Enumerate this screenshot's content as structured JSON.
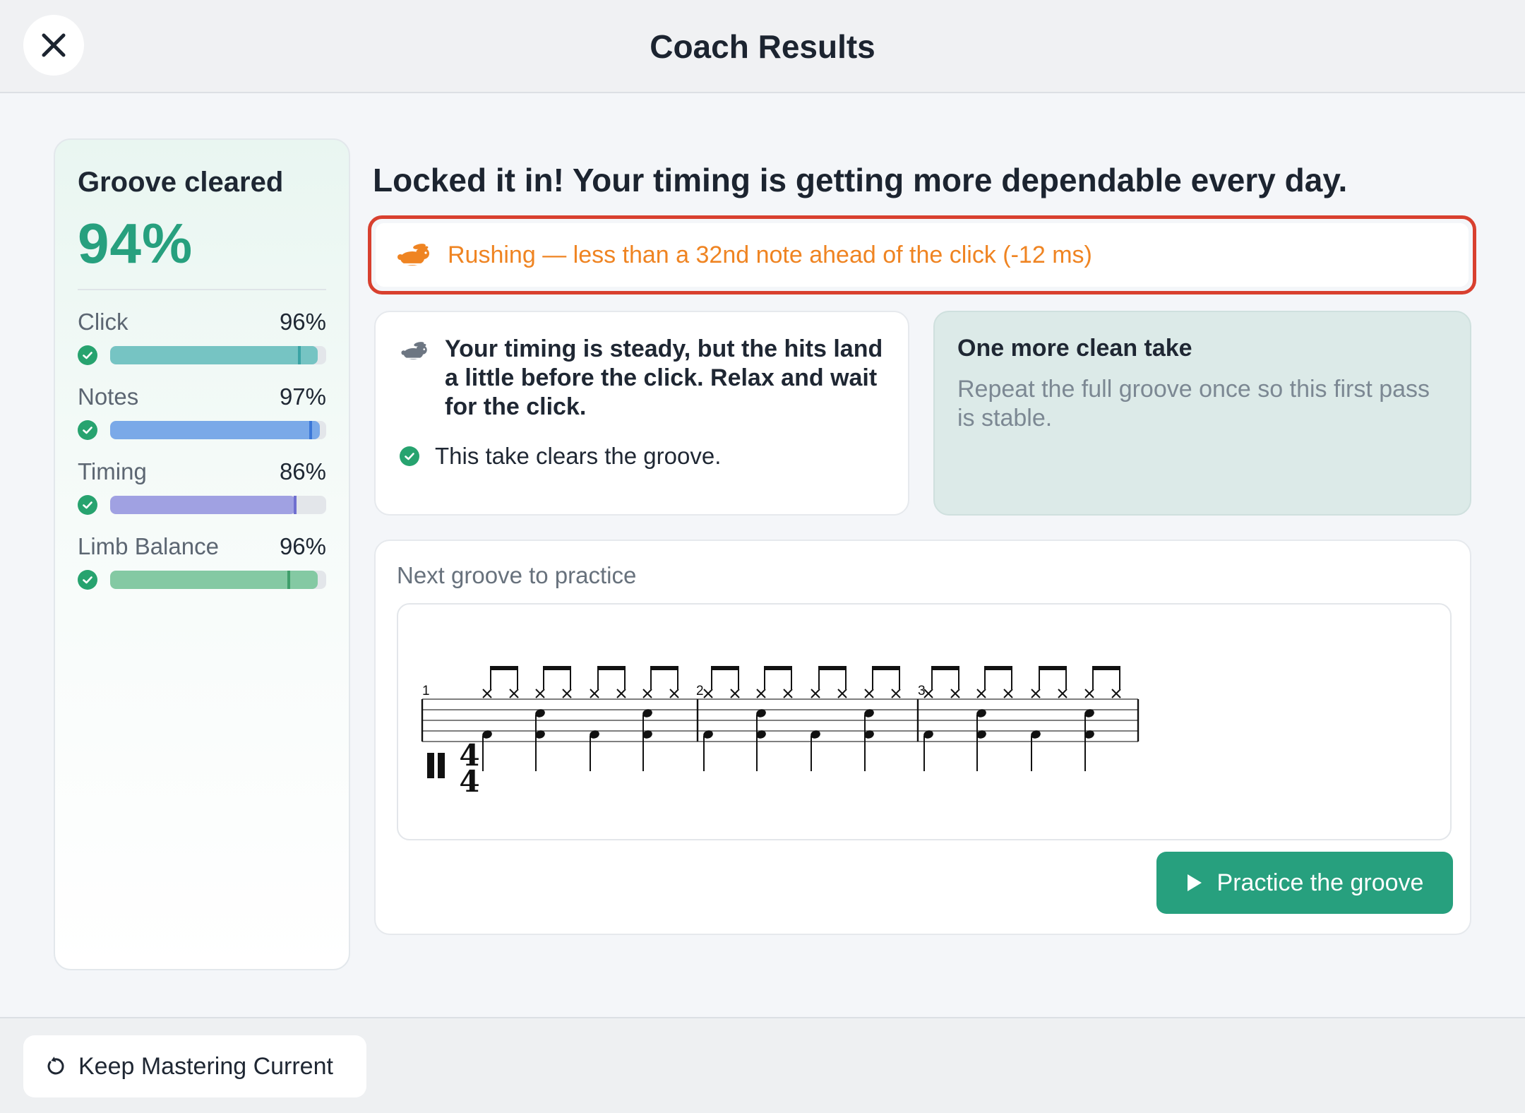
{
  "header": {
    "title": "Coach Results",
    "close_icon": "close-icon"
  },
  "score": {
    "label": "Groove cleared",
    "value": "94%",
    "metrics": [
      {
        "name": "Click",
        "value": "96%",
        "fill": 0.96,
        "marker": 0.87,
        "color": "#76c4c3",
        "marker_color": "#3aa4a5"
      },
      {
        "name": "Notes",
        "value": "97%",
        "fill": 0.97,
        "marker": 0.92,
        "color": "#7aa9e8",
        "marker_color": "#3b78d8"
      },
      {
        "name": "Timing",
        "value": "86%",
        "fill": 0.86,
        "marker": 0.85,
        "color": "#a0a1e2",
        "marker_color": "#6f6fcf"
      },
      {
        "name": "Limb Balance",
        "value": "96%",
        "fill": 0.96,
        "marker": 0.82,
        "color": "#84c9a3",
        "marker_color": "#3f9e6b"
      }
    ]
  },
  "main": {
    "headline": "Locked it in! Your timing is getting more dependable every day.",
    "alert": {
      "icon": "rabbit-icon",
      "text": "Rushing — less than a 32nd note ahead of the click (-12 ms)",
      "color": "#ef8422"
    },
    "feedback": {
      "icon": "rabbit-icon",
      "text": "Your timing is steady, but the hits land a little before the click. Relax and wait for the click.",
      "ok_text": "This take clears the groove."
    },
    "tip": {
      "title": "One more clean take",
      "body": "Repeat the full groove once so this first pass is stable."
    },
    "groove": {
      "label": "Next groove to practice",
      "measure_numbers": [
        "1",
        "2",
        "3"
      ],
      "time_signature": [
        "4",
        "4"
      ],
      "button_label": "Practice the groove",
      "button_icon": "play-icon"
    }
  },
  "footer": {
    "keep_label": "Keep Mastering Current",
    "keep_icon": "restart-icon"
  },
  "colors": {
    "accent": "#27a07e",
    "alert_border": "#d8402f",
    "warning": "#ef8422"
  }
}
